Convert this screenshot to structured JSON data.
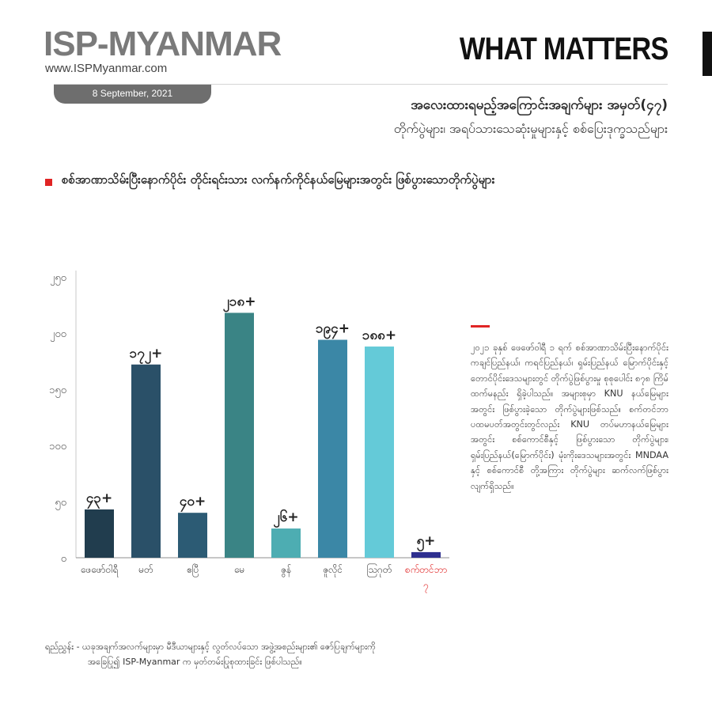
{
  "header": {
    "brand": "ISP-MYANMAR",
    "url": "www.ISPMyanmar.com",
    "date": "8 September, 2021",
    "section": "WHAT MATTERS"
  },
  "titles": {
    "line1": "အလေးထားရမည့်အကြောင်းအချက်များ အမှတ်(၄၇)",
    "line2": "တိုက်ပွဲများ၊ အရပ်သားသေဆုံးမှုများနှင့် စစ်ပြေးဒုက္ခသည်များ",
    "subtitle": "စစ်အာဏာသိမ်းပြီးနောက်ပိုင်း တိုင်းရင်းသား လက်နက်ကိုင်နယ်မြေများအတွင်း ဖြစ်ပွားသောတိုက်ပွဲများ"
  },
  "colors": {
    "accent_red": "#e02424",
    "last_bar": "#2e2f8f"
  },
  "chart_data": {
    "type": "bar",
    "categories": [
      "ဖေဖော်ဝါရီ",
      "မတ်",
      "ဧပြီ",
      "မေ",
      "ဇွန်",
      "ဇူလိုင်",
      "သြဂုတ်",
      "စက်တင်ဘာ ၇"
    ],
    "values": [
      43,
      172,
      40,
      218,
      26,
      194,
      188,
      5
    ],
    "value_labels": [
      "၄၃+",
      "၁၇၂+",
      "၄၀+",
      "၂၁၈+",
      "၂၆+",
      "၁၉၄+",
      "၁၈၈+",
      "၅+"
    ],
    "bar_colors": [
      "#213d4e",
      "#2a5068",
      "#2c5b74",
      "#3a8485",
      "#4dadb2",
      "#3b87a6",
      "#64cad8",
      "#2e2f8f"
    ],
    "highlight_last_label": true,
    "yticks": [
      0,
      50,
      100,
      150,
      200,
      250
    ],
    "ytick_labels": [
      "၀",
      "၅၀",
      "၁၀၀",
      "၁၅၀",
      "၂၀၀",
      "၂၅၀"
    ],
    "ylim": [
      0,
      250
    ],
    "grid": false
  },
  "note": "၂၀၂၁ ခုနှစ် ဖေဖော်ဝါရီ ၁ ရက် စစ်အာဏာသိမ်းပြီးနောက်ပိုင်း ကချင်ပြည်နယ်၊ ကရင်ပြည်နယ်၊ ရှမ်းပြည်နယ် မြောက်ပိုင်းနှင့် တောင်ပိုင်းဒေသများတွင် တိုက်ပွဲဖြစ်ပွားမှု စုစုပေါင်း ၈၇၈ ကြိမ်ထက်မနည်း ရှိခဲ့ပါသည်။ အများစုမှာ KNU နယ်မြေများအတွင်း ဖြစ်ပွားခဲ့သော တိုက်ပွဲများဖြစ်သည်။ စက်တင်ဘာ ပထမပတ်အတွင်းတွင်လည်း KNU တပ်မဟာနယ်မြေများအတွင်း စစ်ကောင်စီနှင့် ဖြစ်ပွားသော တိုက်ပွဲများ၊ ရှမ်းပြည်နယ်(မြောက်ပိုင်း) မုံးကိုးဒေသများအတွင်း MNDAA နှင့် စစ်ကောင်စီ တို့အကြား တိုက်ပွဲများ ဆက်လက်ဖြစ်ပွားလျက်ရှိသည်။",
  "footnote": {
    "line1": "ရည်ညွှန်း - ယခုအချက်အလက်များမှာ မီဒီယာများနှင့် လွတ်လပ်သော အဖွဲ့အစည်းများ၏ ဇော်ပြချက်များကို",
    "line2": "အခြေပြု၍ ISP-Myanmar က မှတ်တမ်းပြုစုထားခြင်း ဖြစ်ပါသည်။"
  }
}
